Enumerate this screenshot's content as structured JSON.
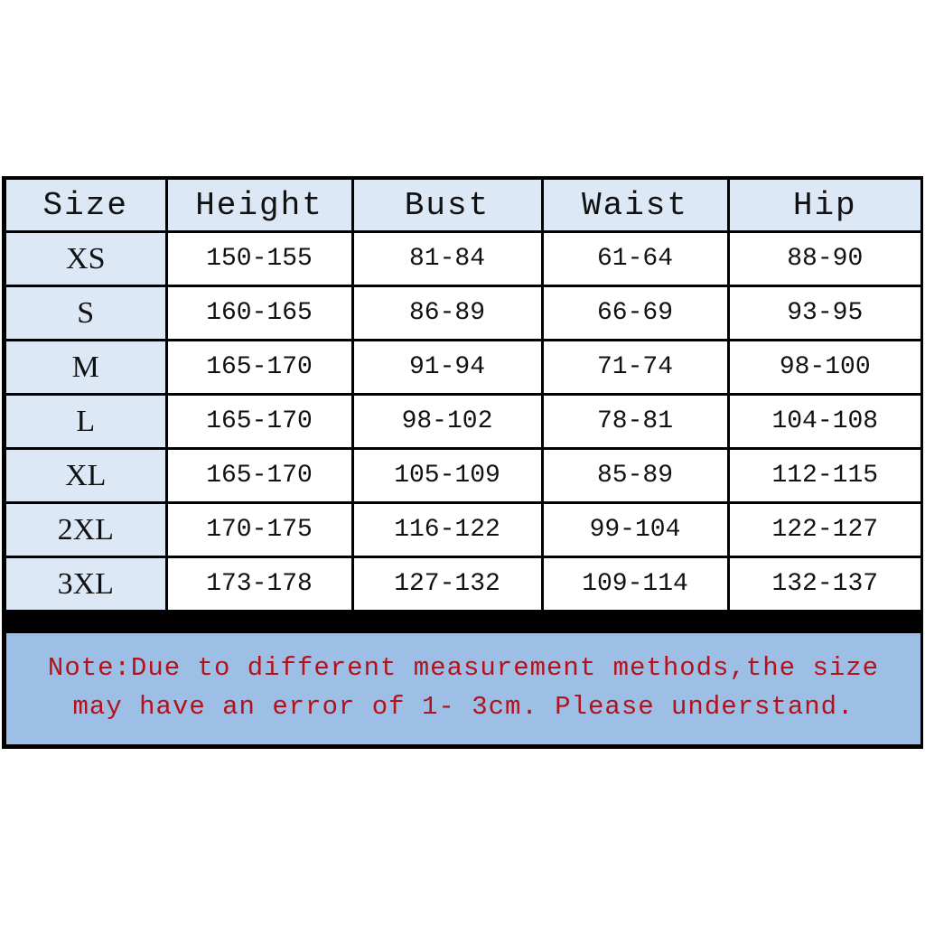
{
  "table": {
    "headers": [
      "Size",
      "Height",
      "Bust",
      "Waist",
      "Hip"
    ],
    "rows": [
      [
        "XS",
        "150-155",
        "81-84",
        "61-64",
        "88-90"
      ],
      [
        "S",
        "160-165",
        "86-89",
        "66-69",
        "93-95"
      ],
      [
        "M",
        "165-170",
        "91-94",
        "71-74",
        "98-100"
      ],
      [
        "L",
        "165-170",
        "98-102",
        "78-81",
        "104-108"
      ],
      [
        "XL",
        "165-170",
        "105-109",
        "85-89",
        "112-115"
      ],
      [
        "2XL",
        "170-175",
        "116-122",
        "99-104",
        "122-127"
      ],
      [
        "3XL",
        "173-178",
        "127-132",
        "109-114",
        "132-137"
      ]
    ]
  },
  "note": {
    "line1": "Note:Due to different measurement methods,the size",
    "line2": "may have an error of 1- 3cm. Please understand."
  },
  "colors": {
    "header_bg": "#dce8f5",
    "note_bg": "#9dbfe6",
    "note_text": "#b3121a",
    "border": "#000000"
  }
}
